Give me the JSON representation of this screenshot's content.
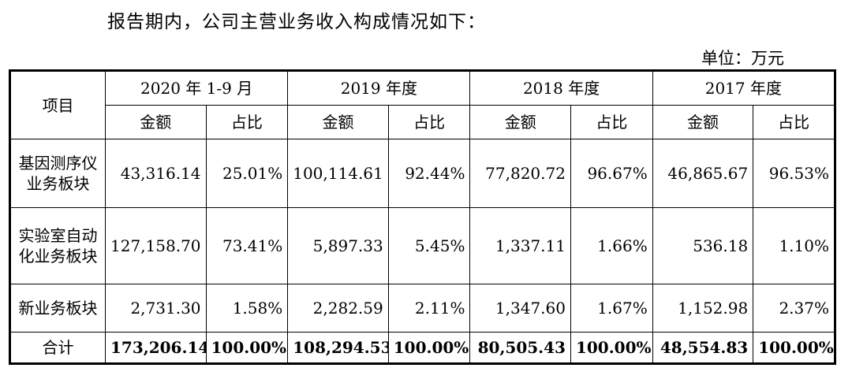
{
  "intro_text": "报告期内，公司主营业务收入构成情况如下：",
  "unit_text": "单位：万元",
  "table": {
    "item_header": "项目",
    "years": [
      "2020 年 1-9 月",
      "2019 年度",
      "2018 年度",
      "2017 年度"
    ],
    "amount_label": "金额",
    "share_label": "占比",
    "rows": [
      {
        "label": "基因测序仪业务板块",
        "cells": [
          "43,316.14",
          "25.01%",
          "100,114.61",
          "92.44%",
          "77,820.72",
          "96.67%",
          "46,865.67",
          "96.53%"
        ]
      },
      {
        "label": "实验室自动化业务板块",
        "cells": [
          "127,158.70",
          "73.41%",
          "5,897.33",
          "5.45%",
          "1,337.11",
          "1.66%",
          "536.18",
          "1.10%"
        ]
      },
      {
        "label": "新业务板块",
        "cells": [
          "2,731.30",
          "1.58%",
          "2,282.59",
          "2.11%",
          "1,347.60",
          "1.67%",
          "1,152.98",
          "2.37%"
        ]
      }
    ],
    "total": {
      "label": "合计",
      "cells": [
        "173,206.14",
        "100.00%",
        "108,294.53",
        "100.00%",
        "80,505.43",
        "100.00%",
        "48,554.83",
        "100.00%"
      ]
    }
  }
}
